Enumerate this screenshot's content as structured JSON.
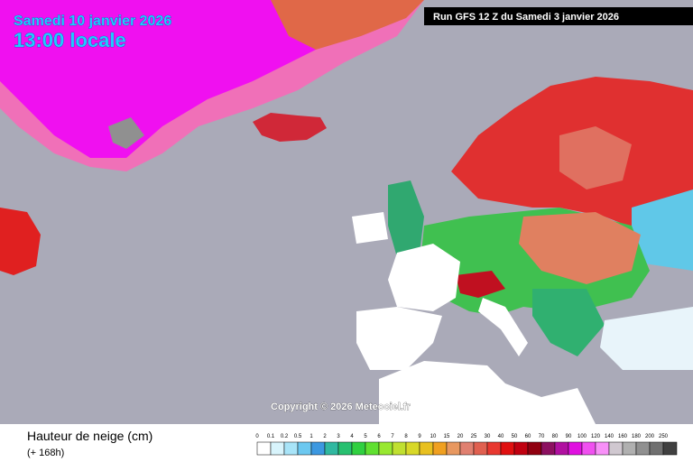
{
  "header": {
    "date": "Samedi 10 janvier 2026",
    "time": "13:00 locale",
    "run": "Run GFS 12 Z du Samedi 3 janvier 2026"
  },
  "copyright": "Copyright © 2026 Meteociel.fr",
  "legend": {
    "title": "Hauteur de neige (cm)",
    "subtitle": "(+ 168h)",
    "items": [
      {
        "label": "0",
        "color": "#ffffff"
      },
      {
        "label": "0.1",
        "color": "#d8f4fc"
      },
      {
        "label": "0.2",
        "color": "#a8e4f8"
      },
      {
        "label": "0.5",
        "color": "#6cc8f0"
      },
      {
        "label": "1",
        "color": "#3c98e0"
      },
      {
        "label": "2",
        "color": "#30b8a0"
      },
      {
        "label": "3",
        "color": "#28c070"
      },
      {
        "label": "4",
        "color": "#30d040"
      },
      {
        "label": "5",
        "color": "#60e030"
      },
      {
        "label": "6",
        "color": "#98e830"
      },
      {
        "label": "7",
        "color": "#c0e030"
      },
      {
        "label": "8",
        "color": "#d8d828"
      },
      {
        "label": "9",
        "color": "#e8c020"
      },
      {
        "label": "10",
        "color": "#f0a020"
      },
      {
        "label": "15",
        "color": "#e89860"
      },
      {
        "label": "20",
        "color": "#e08070"
      },
      {
        "label": "25",
        "color": "#e06050"
      },
      {
        "label": "30",
        "color": "#e83830"
      },
      {
        "label": "40",
        "color": "#e01010"
      },
      {
        "label": "50",
        "color": "#c00010"
      },
      {
        "label": "60",
        "color": "#900010"
      },
      {
        "label": "70",
        "color": "#8c1060"
      },
      {
        "label": "80",
        "color": "#b010a0"
      },
      {
        "label": "90",
        "color": "#e010e0"
      },
      {
        "label": "100",
        "color": "#f050f0"
      },
      {
        "label": "120",
        "color": "#f890f8"
      },
      {
        "label": "140",
        "color": "#d0c8d0"
      },
      {
        "label": "160",
        "color": "#b0b0b0"
      },
      {
        "label": "180",
        "color": "#909090"
      },
      {
        "label": "200",
        "color": "#707070"
      },
      {
        "label": "250",
        "color": "#404040"
      }
    ]
  }
}
